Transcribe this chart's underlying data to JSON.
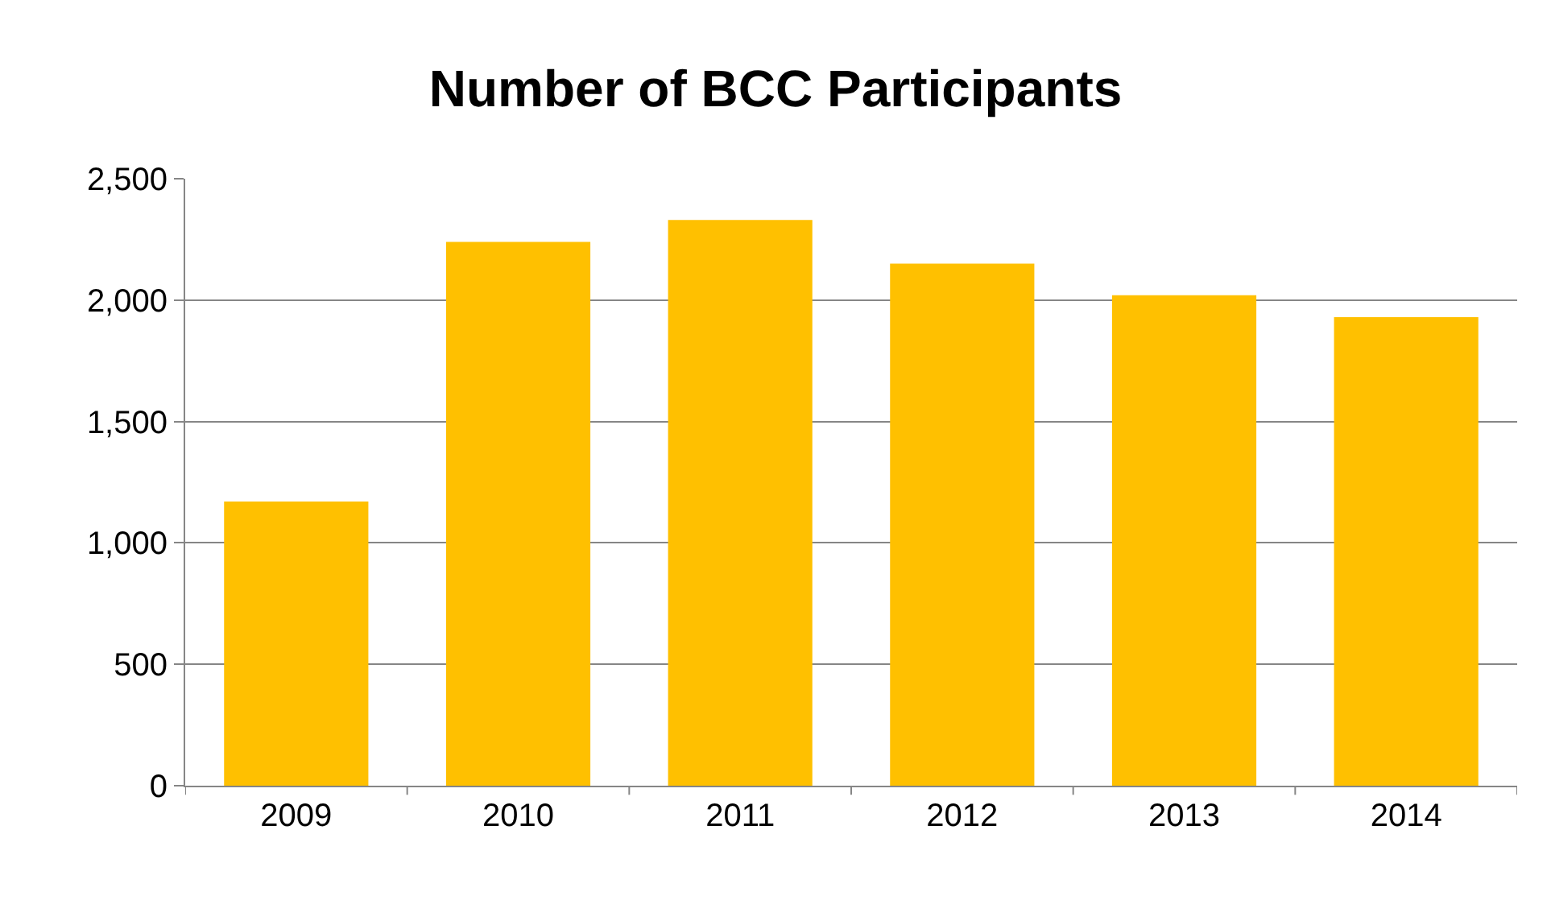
{
  "chart_data": {
    "type": "bar",
    "title": "Number of BCC Participants",
    "categories": [
      "2009",
      "2010",
      "2011",
      "2012",
      "2013",
      "2014"
    ],
    "values": [
      1170,
      2240,
      2330,
      2150,
      2020,
      1930
    ],
    "color": "#ffc000",
    "ylim": [
      0,
      2500
    ],
    "yticks": [
      0,
      {
        "value": 500,
        "label": "500"
      },
      {
        "value": 1000,
        "label": "1,000"
      },
      {
        "value": 1500,
        "label": "1,500"
      },
      {
        "value": 2000,
        "label": "2,000"
      },
      {
        "value": 2500,
        "label": "2,500"
      }
    ],
    "grid": "y",
    "legend": false
  }
}
